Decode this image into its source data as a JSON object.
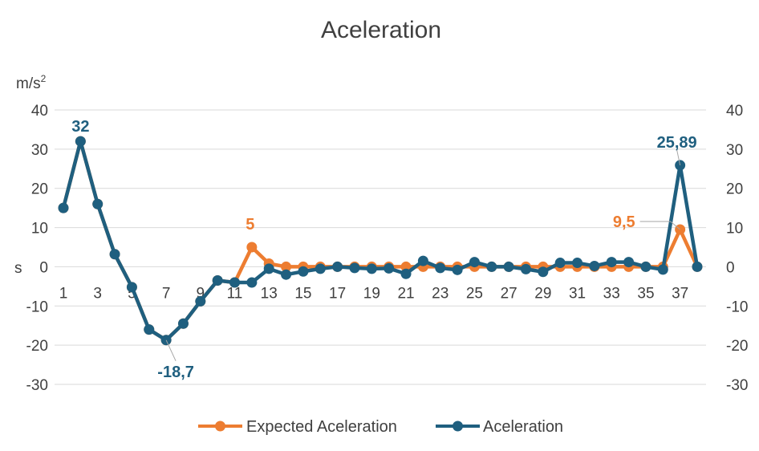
{
  "chart_data": {
    "type": "line",
    "title": "Aceleration",
    "ylabel": "m/s",
    "ylabel_sup": "2",
    "xlabel": "s",
    "ylim": [
      -30,
      40
    ],
    "yticks": [
      40,
      30,
      20,
      10,
      0,
      -10,
      -20,
      -30
    ],
    "yticks_right": [
      40,
      30,
      20,
      10,
      0,
      -10,
      -20,
      -30
    ],
    "y_tick_labels": [
      "40",
      "30",
      "20",
      "10",
      "0",
      "-10",
      "-20",
      "-30"
    ],
    "x": [
      1,
      2,
      3,
      4,
      5,
      6,
      7,
      8,
      9,
      10,
      11,
      12,
      13,
      14,
      15,
      16,
      17,
      18,
      19,
      20,
      21,
      22,
      23,
      24,
      25,
      26,
      27,
      28,
      29,
      30,
      31,
      32,
      33,
      34,
      35,
      36,
      37,
      38
    ],
    "x_tick_labels": [
      "1",
      "3",
      "5",
      "7",
      "9",
      "11",
      "13",
      "15",
      "17",
      "19",
      "21",
      "23",
      "25",
      "27",
      "29",
      "31",
      "33",
      "35",
      "37"
    ],
    "grid": true,
    "legend": "bottom",
    "colors": {
      "expected": "#ED7D31",
      "actual": "#1F5F7F"
    },
    "series": [
      {
        "name": "Expected Aceleration",
        "values": [
          15,
          32,
          16,
          3.2,
          -5.2,
          -16,
          -18.7,
          -14.5,
          -8.8,
          -3.5,
          -4,
          5,
          0.8,
          0,
          0,
          0,
          0,
          0,
          0,
          0,
          0,
          0,
          0,
          0,
          0,
          0,
          0,
          0,
          0,
          0,
          0,
          0,
          0,
          0,
          0,
          0,
          9.5,
          0
        ]
      },
      {
        "name": "Aceleration",
        "values": [
          15,
          32,
          16,
          3.2,
          -5.2,
          -16,
          -18.7,
          -14.5,
          -8.8,
          -3.5,
          -4,
          -4,
          -0.5,
          -2,
          -1.2,
          -0.5,
          0,
          -0.3,
          -0.5,
          -0.4,
          -1.8,
          1.5,
          -0.3,
          -0.8,
          1.2,
          0,
          0,
          -0.6,
          -1.3,
          1,
          1,
          0.2,
          1.2,
          1.2,
          0,
          -0.7,
          25.89,
          0
        ]
      }
    ],
    "data_labels": [
      {
        "series": 1,
        "index": 1,
        "text": "32"
      },
      {
        "series": 1,
        "index": 6,
        "text": "-18,7"
      },
      {
        "series": 0,
        "index": 11,
        "text": "5"
      },
      {
        "series": 0,
        "index": 36,
        "text": "9,5"
      },
      {
        "series": 1,
        "index": 36,
        "text": "25,89"
      }
    ]
  }
}
